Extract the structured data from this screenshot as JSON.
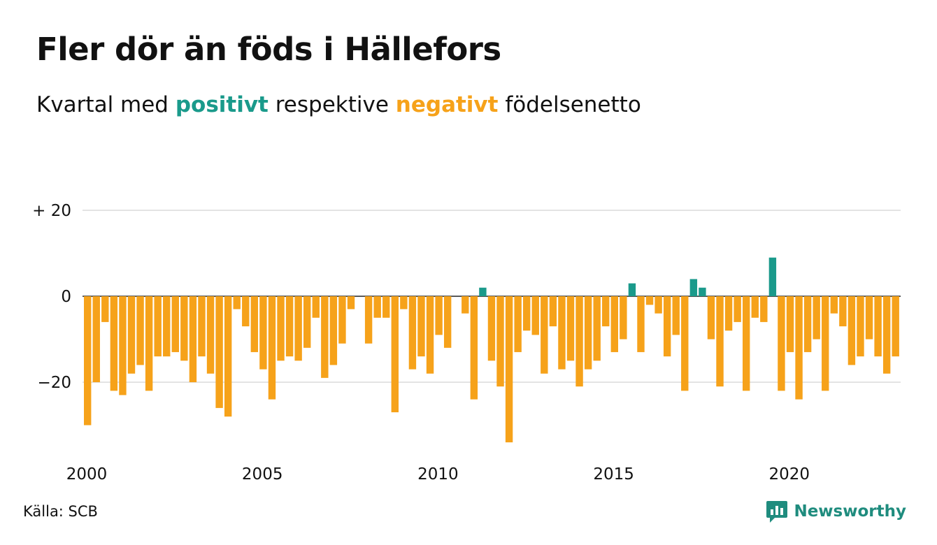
{
  "header": {
    "title": "Fler dör än föds i Hällefors",
    "subtitle_prefix": "Kvartal med ",
    "subtitle_positive": "positivt",
    "subtitle_middle": " respektive ",
    "subtitle_negative": "negativt",
    "subtitle_suffix": " födelsenetto"
  },
  "footer": {
    "source": "Källa: SCB",
    "brand": "Newsworthy"
  },
  "colors": {
    "positive": "#1a9a8b",
    "negative": "#f6a21a",
    "grid": "#e3e3e3",
    "zero_line": "#222222",
    "brand": "#1f8c7e"
  },
  "icons": {
    "brand_logo": "newsworthy-logo-icon"
  },
  "chart_data": {
    "type": "bar",
    "title": "Fler dör än föds i Hällefors",
    "xlabel": "",
    "ylabel": "",
    "ylim": [
      -36,
      20
    ],
    "yticks": [
      20,
      0,
      -20
    ],
    "ytick_labels": [
      "+ 20",
      "0",
      "−20"
    ],
    "xticks": [
      2000,
      2005,
      2010,
      2015,
      2020
    ],
    "xtick_labels": [
      "2000",
      "2005",
      "2010",
      "2015",
      "2020"
    ],
    "x_start_year": 2000,
    "periods_per_year": 4,
    "grid": true,
    "legend": "none",
    "values": [
      -30,
      -20,
      -6,
      -22,
      -23,
      -18,
      -16,
      -22,
      -14,
      -14,
      -13,
      -15,
      -20,
      -14,
      -18,
      -26,
      -28,
      -3,
      -7,
      -13,
      -17,
      -24,
      -15,
      -14,
      -15,
      -12,
      -5,
      -19,
      -16,
      -11,
      -3,
      0,
      -11,
      -5,
      -5,
      -27,
      -3,
      -17,
      -14,
      -18,
      -9,
      -12,
      0,
      -4,
      -24,
      2,
      -15,
      -21,
      -34,
      -13,
      -8,
      -9,
      -18,
      -7,
      -17,
      -15,
      -21,
      -17,
      -15,
      -7,
      -13,
      -10,
      3,
      -13,
      -2,
      -4,
      -14,
      -9,
      -22,
      4,
      2,
      -10,
      -21,
      -8,
      -6,
      -22,
      -5,
      -6,
      9,
      -22,
      -13,
      -24,
      -13,
      -10,
      -22,
      -4,
      -7,
      -16,
      -14,
      -10,
      -14,
      -18,
      -14
    ]
  }
}
